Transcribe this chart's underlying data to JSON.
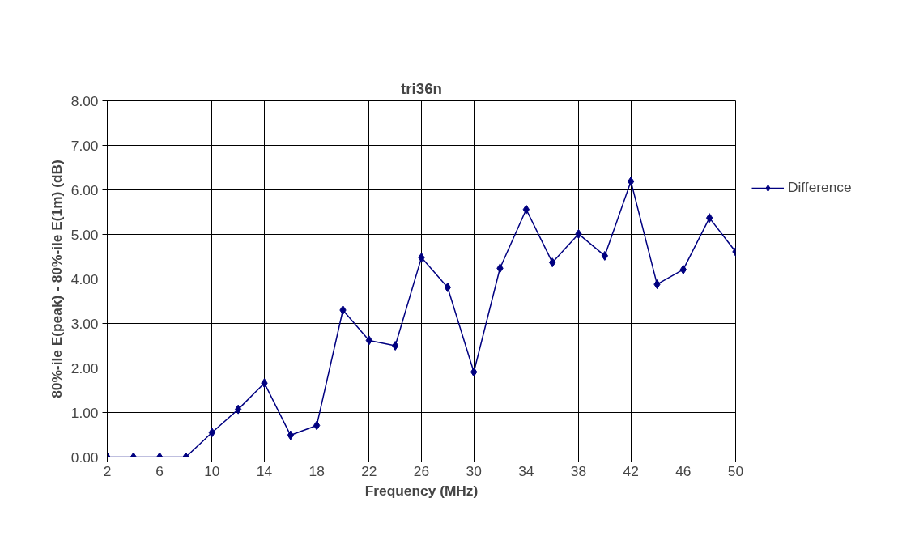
{
  "chart_data": {
    "type": "line",
    "title": "tri36n",
    "xlabel": "Frequency (MHz)",
    "ylabel": "80%-ile E(peak) - 80%-ile E(1m) (dB)",
    "x": [
      2,
      4,
      6,
      8,
      10,
      12,
      14,
      16,
      18,
      20,
      22,
      24,
      26,
      28,
      30,
      32,
      34,
      36,
      38,
      40,
      42,
      44,
      46,
      48,
      50
    ],
    "series": [
      {
        "name": "Difference",
        "color": "#000080",
        "values": [
          0,
          0,
          0,
          0,
          0.55,
          1.07,
          1.66,
          0.49,
          0.71,
          3.3,
          2.62,
          2.5,
          4.48,
          3.81,
          1.91,
          4.24,
          5.56,
          4.37,
          5.01,
          4.52,
          6.19,
          3.88,
          4.21,
          5.37,
          4.61
        ]
      }
    ],
    "xlim": [
      2,
      50
    ],
    "xticks": [
      2,
      6,
      10,
      14,
      18,
      22,
      26,
      30,
      34,
      38,
      42,
      46,
      50
    ],
    "ylim": [
      0,
      8
    ],
    "yticks": [
      {
        "value": 0,
        "label": "0.00"
      },
      {
        "value": 1,
        "label": "1.00"
      },
      {
        "value": 2,
        "label": "2.00"
      },
      {
        "value": 3,
        "label": "3.00"
      },
      {
        "value": 4,
        "label": "4.00"
      },
      {
        "value": 5,
        "label": "5.00"
      },
      {
        "value": 6,
        "label": "6.00"
      },
      {
        "value": 7,
        "label": "7.00"
      },
      {
        "value": 8,
        "label": "8.00"
      }
    ],
    "grid": true,
    "legend": "right",
    "marker": "diamond",
    "line_style": "solid"
  }
}
